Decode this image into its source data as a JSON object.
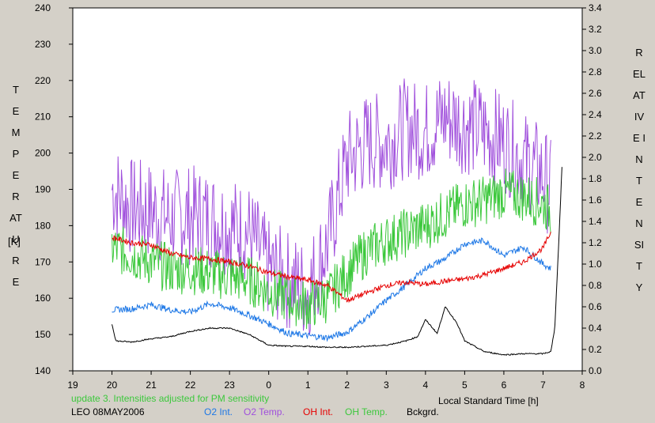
{
  "chart_data": {
    "type": "line",
    "title": "",
    "xlabel": "Local Standard Time [h]",
    "ylabel_left": "TEMPERATURE",
    "ylabel_left_unit": "[K]",
    "ylabel_right": "RELATIVE INTENSITY",
    "xlim": [
      19,
      8
    ],
    "x_ticks": [
      "19",
      "20",
      "21",
      "22",
      "23",
      "0",
      "1",
      "2",
      "3",
      "4",
      "5",
      "6",
      "7",
      "8"
    ],
    "ylim_left": [
      140,
      240
    ],
    "y_ticks_left": [
      "140",
      "150",
      "160",
      "170",
      "180",
      "190",
      "200",
      "210",
      "220",
      "230",
      "240"
    ],
    "ylim_right": [
      0.0,
      3.4
    ],
    "y_ticks_right": [
      "0.0",
      "0.2",
      "0.4",
      "0.6",
      "0.8",
      "1.0",
      "1.2",
      "1.4",
      "1.6",
      "1.8",
      "2.0",
      "2.2",
      "2.4",
      "2.6",
      "2.8",
      "3.0",
      "3.2",
      "3.4"
    ],
    "grid": false,
    "series": [
      {
        "name": "O2 Int.",
        "axis": "right",
        "color": "#1e78e6",
        "x": [
          20.0,
          20.5,
          21.0,
          21.5,
          22.0,
          22.5,
          23.0,
          23.5,
          24.0,
          24.5,
          25.0,
          25.5,
          26.0,
          26.5,
          27.0,
          27.5,
          28.0,
          28.5,
          29.0,
          29.5,
          30.0,
          30.5,
          31.0,
          31.2
        ],
        "y": [
          0.57,
          0.58,
          0.62,
          0.57,
          0.55,
          0.63,
          0.59,
          0.52,
          0.44,
          0.35,
          0.33,
          0.31,
          0.36,
          0.5,
          0.66,
          0.8,
          0.96,
          1.05,
          1.19,
          1.22,
          1.08,
          1.16,
          1.0,
          0.96
        ]
      },
      {
        "name": "O2 Temp.",
        "axis": "left",
        "color": "#a050dc",
        "x": [
          20.0,
          20.5,
          21.0,
          21.5,
          22.0,
          22.5,
          23.0,
          23.5,
          24.0,
          24.5,
          25.0,
          25.5,
          26.0,
          26.5,
          27.0,
          27.5,
          28.0,
          28.5,
          29.0,
          29.5,
          30.0,
          30.5,
          31.0,
          31.2
        ],
        "y": [
          190,
          185,
          184,
          182,
          183,
          182,
          180,
          178,
          168,
          165,
          162,
          175,
          198,
          203,
          203,
          207,
          206,
          210,
          208,
          206,
          203,
          198,
          194,
          190
        ]
      },
      {
        "name": "OH Int.",
        "axis": "right",
        "color": "#e60000",
        "x": [
          20.0,
          20.5,
          21.0,
          21.5,
          22.0,
          22.5,
          23.0,
          23.5,
          24.0,
          24.5,
          25.0,
          25.5,
          26.0,
          26.5,
          27.0,
          27.5,
          28.0,
          28.5,
          29.0,
          29.5,
          30.0,
          30.5,
          31.0,
          31.2
        ],
        "y": [
          1.25,
          1.2,
          1.18,
          1.1,
          1.06,
          1.05,
          1.02,
          0.98,
          0.92,
          0.88,
          0.85,
          0.8,
          0.66,
          0.73,
          0.8,
          0.83,
          0.81,
          0.84,
          0.86,
          0.9,
          0.96,
          1.02,
          1.15,
          1.3
        ]
      },
      {
        "name": "OH Temp.",
        "axis": "left",
        "color": "#3cc83c",
        "x": [
          20.0,
          20.5,
          21.0,
          21.5,
          22.0,
          22.5,
          23.0,
          23.5,
          24.0,
          24.5,
          25.0,
          25.5,
          26.0,
          26.5,
          27.0,
          27.5,
          28.0,
          28.5,
          29.0,
          29.5,
          30.0,
          30.5,
          31.0,
          31.2
        ],
        "y": [
          174,
          172,
          170,
          168,
          168,
          167,
          166,
          165,
          162,
          160,
          158,
          160,
          167,
          173,
          176,
          178,
          180,
          183,
          186,
          187,
          189,
          188,
          186,
          184
        ]
      },
      {
        "name": "Bckgrd.",
        "axis": "right",
        "color": "#000000",
        "x": [
          20.0,
          20.1,
          20.5,
          21.0,
          21.5,
          22.0,
          22.5,
          23.0,
          23.5,
          24.0,
          24.5,
          25.0,
          25.5,
          26.0,
          26.5,
          27.0,
          27.5,
          27.8,
          28.0,
          28.3,
          28.5,
          28.8,
          29.0,
          29.5,
          30.0,
          30.5,
          31.0,
          31.2,
          31.3,
          31.4,
          31.5
        ],
        "y": [
          0.44,
          0.28,
          0.27,
          0.3,
          0.32,
          0.37,
          0.4,
          0.4,
          0.34,
          0.24,
          0.23,
          0.23,
          0.22,
          0.22,
          0.23,
          0.24,
          0.28,
          0.32,
          0.48,
          0.35,
          0.6,
          0.45,
          0.28,
          0.18,
          0.15,
          0.16,
          0.16,
          0.18,
          0.4,
          1.2,
          2.05
        ]
      }
    ]
  },
  "notes": {
    "update": "update 3. Intensities adjusted for PM sensitivity",
    "station": "LEO 08MAY2006"
  },
  "legend": [
    {
      "label": "O2 Int.",
      "color": "#1e78e6"
    },
    {
      "label": "O2 Temp.",
      "color": "#a050dc"
    },
    {
      "label": "OH Int.",
      "color": "#e60000"
    },
    {
      "label": "OH Temp.",
      "color": "#3cc83c"
    },
    {
      "label": "Bckgrd.",
      "color": "#000000"
    }
  ],
  "colors": {
    "update_note": "#3cc83c",
    "background": "#d4d0c8",
    "plot_background": "#ffffff"
  }
}
